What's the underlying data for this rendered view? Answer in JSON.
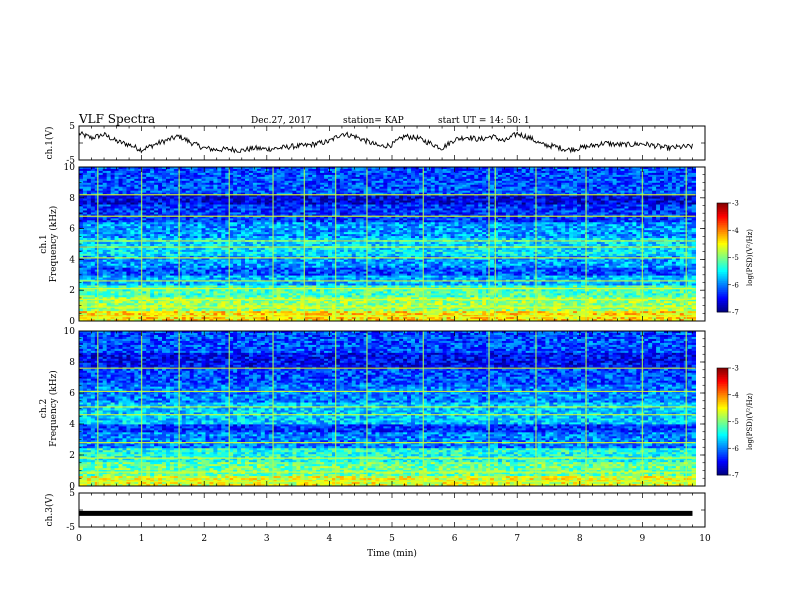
{
  "header": {
    "title": "VLF Spectra",
    "date": "Dec.27, 2017",
    "station": "station= KAP",
    "start": "start  UT =   14: 50: 1"
  },
  "chart_data": [
    {
      "type": "line",
      "name": "ch1-waveform",
      "ylabel": "ch.1(V)",
      "ylim": [
        -5,
        5
      ],
      "yticks": [
        "5",
        "-5"
      ],
      "x": [
        0,
        0.2,
        0.4,
        0.6,
        0.8,
        1.0,
        1.2,
        1.4,
        1.6,
        1.8,
        2.0,
        2.2,
        2.4,
        2.6,
        2.8,
        3.0,
        3.2,
        3.4,
        3.6,
        3.8,
        4.0,
        4.2,
        4.4,
        4.6,
        4.8,
        5.0,
        5.2,
        5.4,
        5.6,
        5.8,
        6.0,
        6.2,
        6.4,
        6.6,
        6.8,
        7.0,
        7.2,
        7.4,
        7.6,
        7.8,
        8.0,
        8.2,
        8.4,
        8.6,
        8.8,
        9.0,
        9.2,
        9.4,
        9.6,
        9.8
      ],
      "y": [
        2.8,
        1.5,
        2.5,
        0.5,
        -0.5,
        -2.0,
        -0.5,
        0.8,
        2.0,
        0.0,
        -1.5,
        -2.0,
        -1.8,
        -2.2,
        -1.5,
        -1.8,
        -1.5,
        -1.0,
        -0.8,
        -0.2,
        0.5,
        2.8,
        2.0,
        0.5,
        -1.0,
        -0.5,
        2.0,
        1.5,
        0.0,
        -1.5,
        1.0,
        1.8,
        1.0,
        2.0,
        0.5,
        2.8,
        1.5,
        -0.5,
        -1.0,
        -2.0,
        -1.5,
        -0.8,
        0.0,
        -0.5,
        -0.5,
        -0.2,
        -0.8,
        -1.5,
        -1.2,
        -1.0
      ]
    },
    {
      "type": "heatmap",
      "name": "ch1-spectrogram",
      "ylabel": "ch.1\nFrequency (kHz)",
      "ylim": [
        0,
        10
      ],
      "yticks": [
        "0",
        "2",
        "4",
        "6",
        "8",
        "10"
      ],
      "colorbar": {
        "label": "log(PSD)(V²/Hz)",
        "ticks": [
          "-3",
          "-4",
          "-5",
          "-6",
          "-7"
        ],
        "range": [
          -7,
          -3
        ]
      },
      "bands": [
        {
          "f0": 0.0,
          "f1": 0.6,
          "level": -4.4
        },
        {
          "f0": 0.6,
          "f1": 1.6,
          "level": -4.9
        },
        {
          "f0": 1.6,
          "f1": 2.3,
          "level": -5.2
        },
        {
          "f0": 2.3,
          "f1": 3.0,
          "level": -5.8
        },
        {
          "f0": 3.0,
          "f1": 3.4,
          "level": -6.2
        },
        {
          "f0": 3.4,
          "f1": 4.2,
          "level": -5.9
        },
        {
          "f0": 4.2,
          "f1": 5.4,
          "level": -5.6
        },
        {
          "f0": 5.4,
          "f1": 6.4,
          "level": -5.9
        },
        {
          "f0": 6.4,
          "f1": 7.6,
          "level": -6.3
        },
        {
          "f0": 7.6,
          "f1": 8.2,
          "level": -6.6
        },
        {
          "f0": 8.2,
          "f1": 10.0,
          "level": -6.2
        }
      ],
      "lines_khz": [
        0.3,
        0.9,
        1.4,
        2.1,
        2.6,
        4.1,
        4.8,
        5.2,
        6.8,
        8.2
      ],
      "vlines_min": [
        0.3,
        1.0,
        1.6,
        2.4,
        3.1,
        3.6,
        4.1,
        4.6,
        5.5,
        6.55,
        6.65,
        7.3,
        8.1,
        9.0,
        9.7
      ]
    },
    {
      "type": "heatmap",
      "name": "ch2-spectrogram",
      "ylabel": "ch.2\nFrequency (kHz)",
      "ylim": [
        0,
        10
      ],
      "yticks": [
        "0",
        "2",
        "4",
        "6",
        "8",
        "10"
      ],
      "colorbar": {
        "label": "log(PSD)(V²/Hz)",
        "ticks": [
          "-3",
          "-4",
          "-5",
          "-6",
          "-7"
        ],
        "range": [
          -7,
          -3
        ]
      },
      "bands": [
        {
          "f0": 0.0,
          "f1": 0.6,
          "level": -4.6
        },
        {
          "f0": 0.6,
          "f1": 1.6,
          "level": -5.1
        },
        {
          "f0": 1.6,
          "f1": 2.4,
          "level": -5.4
        },
        {
          "f0": 2.4,
          "f1": 3.4,
          "level": -6.0
        },
        {
          "f0": 3.4,
          "f1": 4.0,
          "level": -6.3
        },
        {
          "f0": 4.0,
          "f1": 5.4,
          "level": -5.7
        },
        {
          "f0": 5.4,
          "f1": 6.6,
          "level": -6.0
        },
        {
          "f0": 6.6,
          "f1": 7.6,
          "level": -6.2
        },
        {
          "f0": 7.6,
          "f1": 8.6,
          "level": -6.5
        },
        {
          "f0": 8.6,
          "f1": 10.0,
          "level": -6.2
        }
      ],
      "lines_khz": [
        0.3,
        0.9,
        1.8,
        2.8,
        4.6,
        5.1,
        6.1,
        7.6
      ],
      "vlines_min": [
        0.3,
        1.0,
        1.6,
        2.4,
        3.1,
        4.1,
        4.6,
        5.5,
        6.55,
        7.3,
        8.1,
        9.0,
        9.7
      ]
    },
    {
      "type": "line",
      "name": "ch3-waveform",
      "ylabel": "ch.3(V)",
      "ylim": [
        -5,
        5
      ],
      "yticks": [
        "5",
        "-5"
      ],
      "x": [
        0,
        9.8
      ],
      "y": [
        -1.0,
        -1.0
      ]
    }
  ],
  "xaxis": {
    "label": "Time  (min)",
    "range": [
      0,
      10
    ],
    "ticks": [
      "0",
      "1",
      "2",
      "3",
      "4",
      "5",
      "6",
      "7",
      "8",
      "9",
      "10"
    ]
  }
}
